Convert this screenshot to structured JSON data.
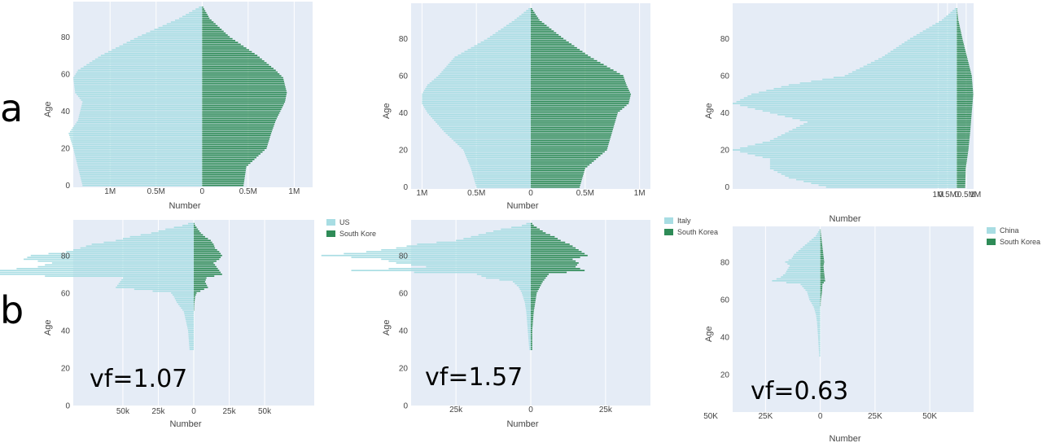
{
  "figure": {
    "row_labels": [
      "a",
      "b"
    ],
    "colors": {
      "left": "#a8dde3",
      "right": "#2e8b57",
      "plot_bg": "#e5ecf6",
      "grid": "#ffffff"
    }
  },
  "chart_data": [
    {
      "type": "bar",
      "orientation": "population-pyramid",
      "row": "a",
      "col": 0,
      "ylabel": "Age",
      "xlabel": "Number",
      "xlim": [
        -1.4,
        1.2
      ],
      "ylim": [
        -1,
        99
      ],
      "xticks": [
        -1,
        -0.5,
        0,
        0.5,
        1
      ],
      "xtick_labels": [
        "1M",
        "0.5M",
        "0",
        "0.5M",
        "1M"
      ],
      "yticks": [
        0,
        20,
        40,
        60,
        80
      ],
      "ytick_labels": [
        "0",
        "20",
        "40",
        "60",
        "80"
      ],
      "units": "millions",
      "series": [
        {
          "key": "S",
          "ages": [
            0,
            10,
            20,
            28,
            35,
            45,
            50,
            58,
            62,
            70,
            80,
            90,
            97
          ],
          "values": [
            -1.3,
            -1.35,
            -1.4,
            -1.45,
            -1.35,
            -1.3,
            -1.38,
            -1.4,
            -1.35,
            -1.1,
            -0.7,
            -0.25,
            0
          ]
        },
        {
          "key": "K",
          "ages": [
            0,
            10,
            20,
            28,
            35,
            45,
            50,
            58,
            62,
            70,
            80,
            90,
            97
          ],
          "values": [
            0.45,
            0.48,
            0.7,
            0.75,
            0.8,
            0.9,
            0.92,
            0.88,
            0.8,
            0.6,
            0.3,
            0.08,
            0
          ]
        }
      ]
    },
    {
      "type": "bar",
      "orientation": "population-pyramid",
      "row": "a",
      "col": 1,
      "ylabel": "Age",
      "xlabel": "Number",
      "xlim": [
        -1.1,
        1.1
      ],
      "ylim": [
        -1,
        99
      ],
      "xticks": [
        -1,
        -0.5,
        0,
        0.5,
        1
      ],
      "xtick_labels": [
        "1M",
        "0.5M",
        "0",
        "0.5M",
        "1M"
      ],
      "yticks": [
        0,
        20,
        40,
        60,
        80
      ],
      "ytick_labels": [
        "0",
        "20",
        "40",
        "60",
        "80"
      ],
      "units": "millions",
      "series": [
        {
          "key": "S",
          "ages": [
            0,
            10,
            20,
            30,
            40,
            45,
            50,
            55,
            60,
            70,
            80,
            90,
            97
          ],
          "values": [
            -0.5,
            -0.55,
            -0.62,
            -0.8,
            -0.95,
            -1.0,
            -1.0,
            -0.95,
            -0.85,
            -0.7,
            -0.4,
            -0.15,
            0
          ]
        },
        {
          "key": "K",
          "ages": [
            0,
            10,
            20,
            30,
            40,
            45,
            50,
            55,
            60,
            70,
            80,
            90,
            97
          ],
          "values": [
            0.45,
            0.5,
            0.7,
            0.75,
            0.8,
            0.9,
            0.92,
            0.88,
            0.85,
            0.55,
            0.3,
            0.08,
            0
          ]
        }
      ]
    },
    {
      "type": "bar",
      "orientation": "population-pyramid",
      "row": "a",
      "col": 2,
      "ylabel": "Age",
      "xlabel": "Number",
      "xlim": [
        -12,
        0.9
      ],
      "ylim": [
        -1,
        99
      ],
      "xticks": [
        -1,
        -0.5,
        0,
        0.5,
        1
      ],
      "xtick_labels": [
        "1M",
        "0.5M",
        "0",
        "0.5M",
        "1M"
      ],
      "yticks": [
        0,
        20,
        40,
        60,
        80
      ],
      "ytick_labels": [
        "0",
        "20",
        "40",
        "60",
        "80"
      ],
      "units": "millions",
      "series": [
        {
          "key": "S",
          "ages": [
            0,
            5,
            10,
            15,
            20,
            25,
            30,
            35,
            40,
            45,
            50,
            55,
            60,
            70,
            80,
            90,
            97
          ],
          "values": [
            -7,
            -9,
            -10,
            -10,
            -12,
            -10,
            -9,
            -8,
            -10,
            -12,
            -11,
            -9,
            -6,
            -4,
            -2.5,
            -0.8,
            0
          ]
        },
        {
          "key": "K",
          "ages": [
            0,
            10,
            20,
            30,
            40,
            50,
            60,
            70,
            80,
            90,
            97
          ],
          "values": [
            0.45,
            0.48,
            0.62,
            0.72,
            0.8,
            0.88,
            0.8,
            0.55,
            0.3,
            0.08,
            0
          ]
        }
      ]
    },
    {
      "type": "bar",
      "orientation": "population-pyramid",
      "row": "b",
      "col": 0,
      "ylabel": "Age",
      "xlabel": "Number",
      "vf": "vf=1.07",
      "xlim": [
        -85,
        85
      ],
      "ylim": [
        0,
        99
      ],
      "xticks": [
        -50,
        -25,
        0,
        25,
        50
      ],
      "xtick_labels": [
        "50k",
        "25k",
        "0",
        "25k",
        "50k"
      ],
      "yticks": [
        0,
        20,
        40,
        60,
        80
      ],
      "ytick_labels": [
        "0",
        "20",
        "40",
        "60",
        "80"
      ],
      "units": "thousands",
      "series": [
        {
          "key": "S",
          "ages": [
            30,
            40,
            50,
            55,
            58,
            60,
            63,
            66,
            68,
            70,
            72,
            74,
            76,
            78,
            80,
            82,
            84,
            86,
            88,
            90,
            92,
            94,
            96,
            98
          ],
          "values": [
            -3,
            -4,
            -7,
            -12,
            -14,
            -16,
            -55,
            -52,
            -50,
            -160,
            -140,
            -110,
            -100,
            -120,
            -115,
            -90,
            -80,
            -72,
            -55,
            -45,
            -30,
            -20,
            -8,
            0
          ]
        },
        {
          "key": "K",
          "ages": [
            30,
            40,
            50,
            55,
            58,
            60,
            63,
            66,
            68,
            70,
            72,
            74,
            76,
            78,
            80,
            82,
            84,
            86,
            88,
            90,
            92,
            94,
            96,
            98
          ],
          "values": [
            0,
            0,
            0,
            0.5,
            1,
            2,
            10,
            8,
            9,
            20,
            18,
            16,
            14,
            18,
            20,
            18,
            15,
            14,
            12,
            8,
            5,
            3,
            1,
            0
          ]
        }
      ],
      "legend": [
        "US",
        "South Kore"
      ]
    },
    {
      "type": "bar",
      "orientation": "population-pyramid",
      "row": "b",
      "col": 1,
      "ylabel": "Age",
      "xlabel": "Number",
      "vf": "vf=1.57",
      "xlim": [
        -40,
        40
      ],
      "ylim": [
        0,
        99
      ],
      "xticks": [
        -25,
        0,
        25
      ],
      "xtick_labels": [
        "25k",
        "0",
        "25k"
      ],
      "yticks": [
        0,
        20,
        40,
        60,
        80
      ],
      "ytick_labels": [
        "0",
        "20",
        "40",
        "60",
        "80"
      ],
      "units": "thousands",
      "series": [
        {
          "key": "S",
          "ages": [
            30,
            40,
            50,
            55,
            60,
            63,
            66,
            68,
            70,
            72,
            74,
            76,
            78,
            80,
            82,
            84,
            86,
            88,
            90,
            92,
            94,
            96,
            98
          ],
          "values": [
            -0.5,
            -1,
            -1.5,
            -2,
            -3,
            -4,
            -6,
            -15,
            -18,
            -60,
            -35,
            -45,
            -50,
            -70,
            -55,
            -45,
            -38,
            -25,
            -20,
            -15,
            -10,
            -3,
            0
          ]
        },
        {
          "key": "K",
          "ages": [
            30,
            40,
            50,
            55,
            60,
            63,
            66,
            68,
            70,
            72,
            74,
            76,
            78,
            80,
            82,
            84,
            86,
            88,
            90,
            92,
            94,
            96,
            98
          ],
          "values": [
            0.5,
            0.5,
            1,
            1.5,
            2,
            3,
            4,
            5,
            6,
            18,
            15,
            16,
            14,
            19,
            17,
            15,
            13,
            10,
            8,
            5,
            3,
            1,
            0
          ]
        }
      ],
      "legend": [
        "Italy",
        "South Korea"
      ]
    },
    {
      "type": "bar",
      "orientation": "population-pyramid",
      "row": "b",
      "col": 2,
      "ylabel": "Age",
      "xlabel": "Number",
      "vf": "vf=0.63",
      "xlim": [
        -40,
        70
      ],
      "ylim": [
        0,
        99
      ],
      "xticks": [
        -50,
        -25,
        0,
        25,
        50
      ],
      "xtick_labels": [
        "50K",
        "25K",
        "0",
        "25K",
        "50K"
      ],
      "yticks": [
        20,
        40,
        60,
        80
      ],
      "ytick_labels": [
        "20",
        "40",
        "60",
        "80"
      ],
      "units": "thousands",
      "series": [
        {
          "key": "S",
          "ages": [
            30,
            40,
            48,
            52,
            56,
            60,
            64,
            68,
            70,
            72,
            74,
            76,
            78,
            80,
            82,
            84,
            86,
            88,
            90,
            92,
            94,
            96,
            98
          ],
          "values": [
            -0.5,
            -1,
            -1.5,
            -2,
            -3,
            -5,
            -6,
            -9,
            -22,
            -18,
            -16,
            -15,
            -14,
            -16,
            -13,
            -12,
            -10,
            -8,
            -6,
            -4,
            -2,
            -1,
            0
          ]
        },
        {
          "key": "K",
          "ages": [
            30,
            40,
            48,
            52,
            56,
            60,
            64,
            68,
            70,
            72,
            74,
            76,
            78,
            80,
            82,
            84,
            86,
            88,
            90,
            92,
            94,
            96,
            98
          ],
          "values": [
            0,
            0,
            0,
            0,
            0,
            0.3,
            0.8,
            1,
            2.2,
            2,
            1.8,
            1.6,
            1.5,
            1.8,
            1.6,
            1.4,
            1.2,
            1,
            0.8,
            0.6,
            0.4,
            0.2,
            0
          ]
        }
      ],
      "legend": [
        "China",
        "South Korea"
      ]
    }
  ]
}
